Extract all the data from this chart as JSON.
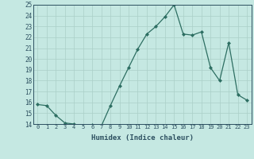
{
  "x": [
    0,
    1,
    2,
    3,
    4,
    5,
    6,
    7,
    8,
    9,
    10,
    11,
    12,
    13,
    14,
    15,
    16,
    17,
    18,
    19,
    20,
    21,
    22,
    23
  ],
  "y": [
    15.8,
    15.7,
    14.8,
    14.1,
    14.0,
    13.8,
    13.9,
    13.8,
    15.7,
    17.5,
    19.2,
    20.9,
    22.3,
    23.0,
    23.9,
    25.0,
    22.3,
    22.2,
    22.5,
    19.2,
    18.0,
    21.5,
    16.7,
    16.2
  ],
  "xlabel": "Humidex (Indice chaleur)",
  "ylim": [
    14,
    25
  ],
  "xlim": [
    -0.5,
    23.5
  ],
  "yticks": [
    14,
    15,
    16,
    17,
    18,
    19,
    20,
    21,
    22,
    23,
    24,
    25
  ],
  "xticks": [
    0,
    1,
    2,
    3,
    4,
    5,
    6,
    7,
    8,
    9,
    10,
    11,
    12,
    13,
    14,
    15,
    16,
    17,
    18,
    19,
    20,
    21,
    22,
    23
  ],
  "line_color": "#2d6e62",
  "marker_color": "#2d6e62",
  "bg_color": "#c5e8e2",
  "grid_color": "#aacfc8",
  "text_color": "#2d5060",
  "spine_color": "#2d5060"
}
